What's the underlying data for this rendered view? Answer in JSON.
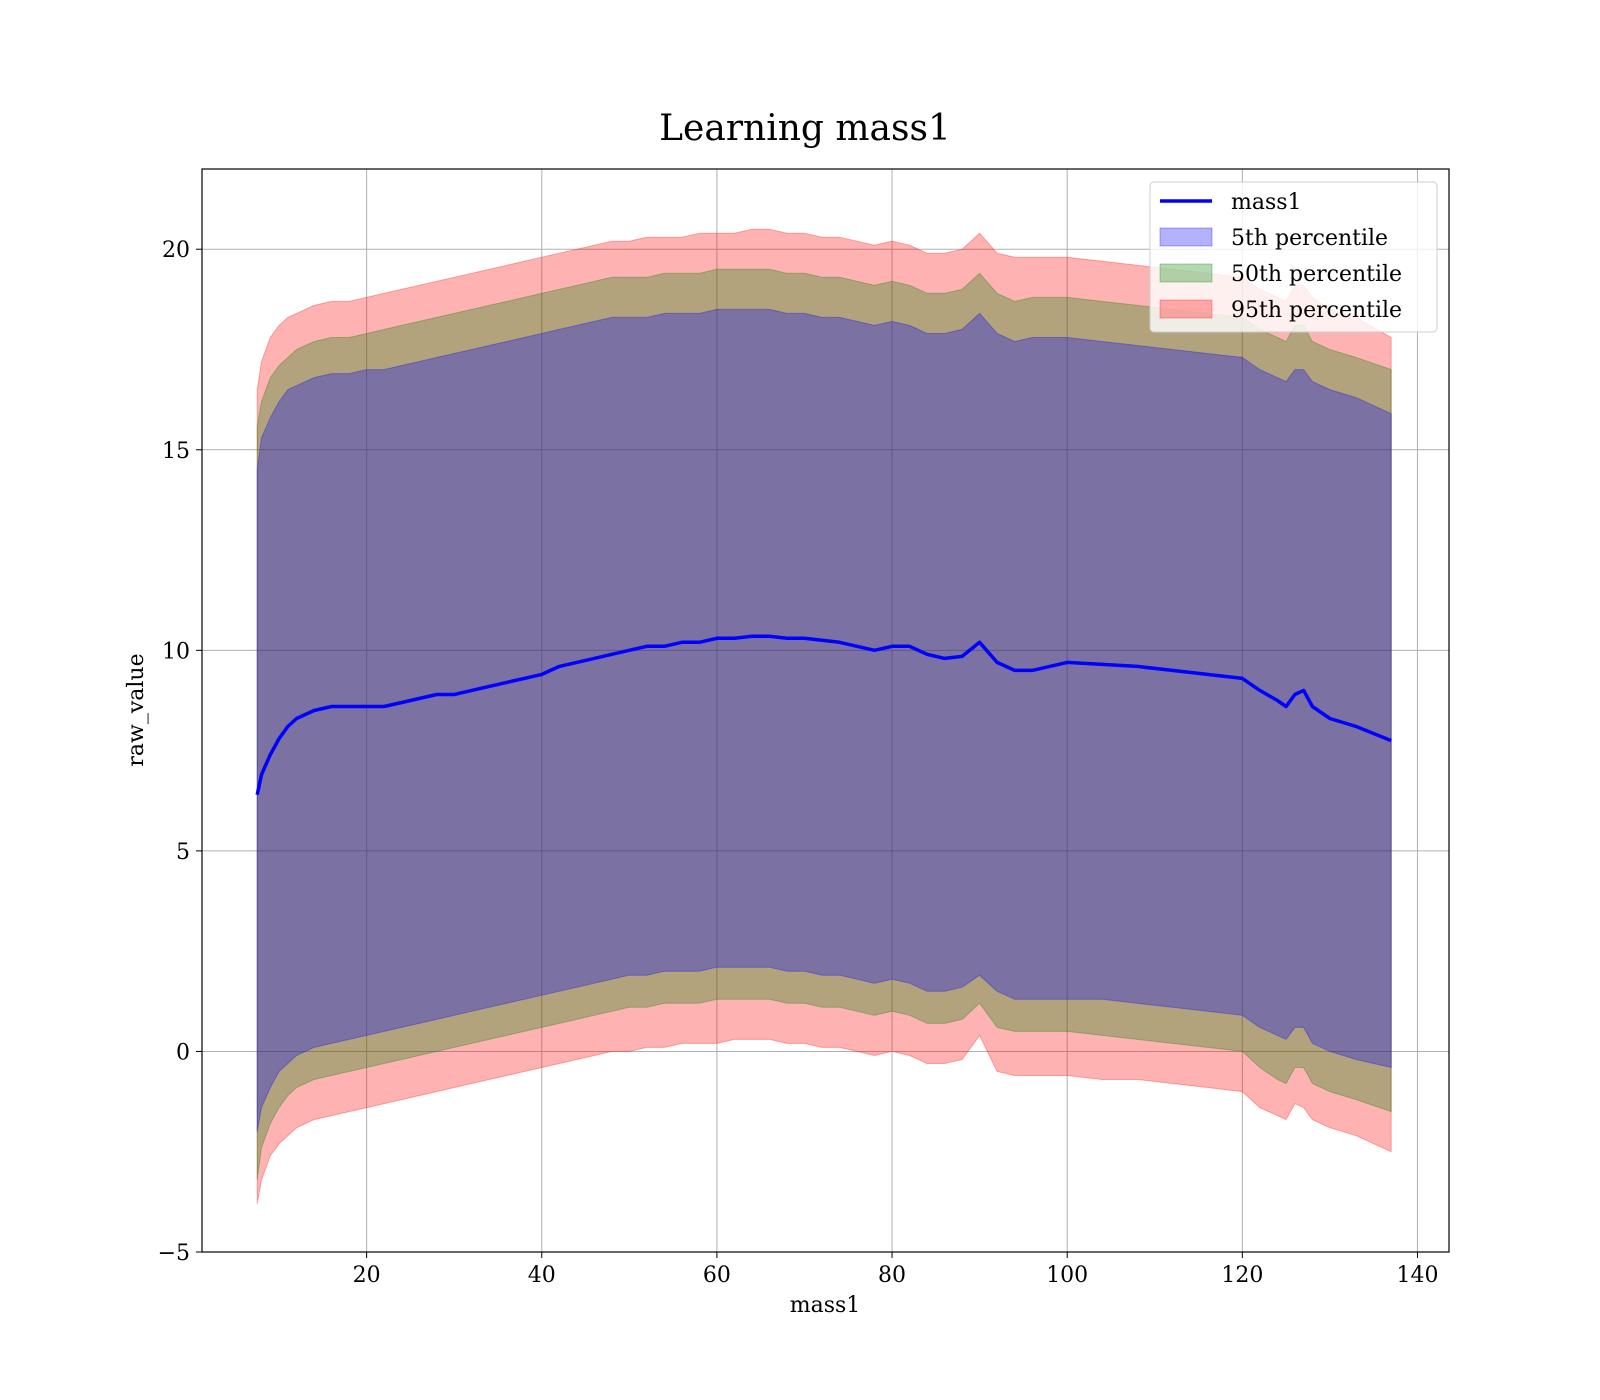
{
  "chart_data": {
    "type": "area",
    "title": "Learning mass1",
    "xlabel": "mass1",
    "ylabel": "raw_value",
    "xlim": [
      1.2,
      143.6
    ],
    "ylim": [
      -5,
      22
    ],
    "xticks": [
      20,
      40,
      60,
      80,
      100,
      120,
      140
    ],
    "yticks": [
      -5,
      0,
      5,
      10,
      15,
      20
    ],
    "ytick_labels": [
      "−5",
      "0",
      "5",
      "10",
      "15",
      "20"
    ],
    "grid": true,
    "legend_position": "top-right",
    "colors": {
      "line": "#0000ff",
      "band_5": "#0000ff",
      "band_50": "#008000",
      "band_95": "#ff0000"
    },
    "legend": [
      "mass1",
      "5th percentile",
      "50th percentile",
      "95th percentile"
    ],
    "x": [
      7.5,
      8,
      9,
      10,
      11,
      12,
      14,
      16,
      18,
      20,
      22,
      24,
      26,
      28,
      30,
      32,
      34,
      36,
      38,
      40,
      42,
      44,
      46,
      48,
      50,
      52,
      54,
      56,
      58,
      60,
      62,
      64,
      66,
      68,
      70,
      72,
      74,
      76,
      78,
      80,
      82,
      84,
      86,
      88,
      90,
      92,
      94,
      96,
      98,
      100,
      104,
      108,
      112,
      116,
      120,
      122,
      124,
      125,
      126,
      127,
      128,
      130,
      133,
      137
    ],
    "series": [
      {
        "name": "mass1",
        "values": [
          6.4,
          6.9,
          7.4,
          7.8,
          8.1,
          8.3,
          8.5,
          8.6,
          8.6,
          8.6,
          8.6,
          8.7,
          8.8,
          8.9,
          8.9,
          9.0,
          9.1,
          9.2,
          9.3,
          9.4,
          9.6,
          9.7,
          9.8,
          9.9,
          10.0,
          10.1,
          10.1,
          10.2,
          10.2,
          10.3,
          10.3,
          10.35,
          10.35,
          10.3,
          10.3,
          10.25,
          10.2,
          10.1,
          10.0,
          10.1,
          10.1,
          9.9,
          9.8,
          9.85,
          10.2,
          9.7,
          9.5,
          9.5,
          9.6,
          9.7,
          9.65,
          9.6,
          9.5,
          9.4,
          9.3,
          9.0,
          8.75,
          8.6,
          8.9,
          9.0,
          8.6,
          8.3,
          8.1,
          7.75
        ]
      },
      {
        "name": "5th percentile",
        "values": [
          [
            -2.0,
            14.5
          ],
          [
            -1.4,
            15.3
          ],
          [
            -0.9,
            15.8
          ],
          [
            -0.5,
            16.2
          ],
          [
            -0.3,
            16.5
          ],
          [
            -0.1,
            16.6
          ],
          [
            0.1,
            16.8
          ],
          [
            0.2,
            16.9
          ],
          [
            0.3,
            16.9
          ],
          [
            0.4,
            17.0
          ],
          [
            0.5,
            17.0
          ],
          [
            0.6,
            17.1
          ],
          [
            0.7,
            17.2
          ],
          [
            0.8,
            17.3
          ],
          [
            0.9,
            17.4
          ],
          [
            1.0,
            17.5
          ],
          [
            1.1,
            17.6
          ],
          [
            1.2,
            17.7
          ],
          [
            1.3,
            17.8
          ],
          [
            1.4,
            17.9
          ],
          [
            1.5,
            18.0
          ],
          [
            1.6,
            18.1
          ],
          [
            1.7,
            18.2
          ],
          [
            1.8,
            18.3
          ],
          [
            1.9,
            18.3
          ],
          [
            1.9,
            18.3
          ],
          [
            2.0,
            18.4
          ],
          [
            2.0,
            18.4
          ],
          [
            2.0,
            18.4
          ],
          [
            2.1,
            18.5
          ],
          [
            2.1,
            18.5
          ],
          [
            2.1,
            18.5
          ],
          [
            2.1,
            18.5
          ],
          [
            2.0,
            18.4
          ],
          [
            2.0,
            18.4
          ],
          [
            1.9,
            18.3
          ],
          [
            1.9,
            18.3
          ],
          [
            1.8,
            18.2
          ],
          [
            1.7,
            18.1
          ],
          [
            1.8,
            18.2
          ],
          [
            1.7,
            18.1
          ],
          [
            1.5,
            17.9
          ],
          [
            1.5,
            17.9
          ],
          [
            1.6,
            18.0
          ],
          [
            1.9,
            18.4
          ],
          [
            1.5,
            17.9
          ],
          [
            1.3,
            17.7
          ],
          [
            1.3,
            17.8
          ],
          [
            1.3,
            17.8
          ],
          [
            1.3,
            17.8
          ],
          [
            1.3,
            17.7
          ],
          [
            1.2,
            17.6
          ],
          [
            1.1,
            17.5
          ],
          [
            1.0,
            17.4
          ],
          [
            0.9,
            17.3
          ],
          [
            0.6,
            17.0
          ],
          [
            0.4,
            16.8
          ],
          [
            0.3,
            16.7
          ],
          [
            0.6,
            17.0
          ],
          [
            0.6,
            17.0
          ],
          [
            0.2,
            16.7
          ],
          [
            0.0,
            16.5
          ],
          [
            -0.2,
            16.3
          ],
          [
            -0.4,
            15.9
          ]
        ]
      },
      {
        "name": "50th percentile",
        "values": [
          [
            -3.2,
            15.6
          ],
          [
            -2.4,
            16.2
          ],
          [
            -1.8,
            16.8
          ],
          [
            -1.4,
            17.1
          ],
          [
            -1.1,
            17.3
          ],
          [
            -0.9,
            17.5
          ],
          [
            -0.7,
            17.7
          ],
          [
            -0.6,
            17.8
          ],
          [
            -0.5,
            17.8
          ],
          [
            -0.4,
            17.9
          ],
          [
            -0.3,
            18.0
          ],
          [
            -0.2,
            18.1
          ],
          [
            -0.1,
            18.2
          ],
          [
            0.0,
            18.3
          ],
          [
            0.1,
            18.4
          ],
          [
            0.2,
            18.5
          ],
          [
            0.3,
            18.6
          ],
          [
            0.4,
            18.7
          ],
          [
            0.5,
            18.8
          ],
          [
            0.6,
            18.9
          ],
          [
            0.7,
            19.0
          ],
          [
            0.8,
            19.1
          ],
          [
            0.9,
            19.2
          ],
          [
            1.0,
            19.3
          ],
          [
            1.1,
            19.3
          ],
          [
            1.1,
            19.3
          ],
          [
            1.2,
            19.4
          ],
          [
            1.2,
            19.4
          ],
          [
            1.2,
            19.4
          ],
          [
            1.3,
            19.5
          ],
          [
            1.3,
            19.5
          ],
          [
            1.3,
            19.5
          ],
          [
            1.3,
            19.5
          ],
          [
            1.2,
            19.4
          ],
          [
            1.2,
            19.4
          ],
          [
            1.1,
            19.3
          ],
          [
            1.1,
            19.3
          ],
          [
            1.0,
            19.2
          ],
          [
            0.9,
            19.1
          ],
          [
            1.0,
            19.2
          ],
          [
            0.9,
            19.1
          ],
          [
            0.7,
            18.9
          ],
          [
            0.7,
            18.9
          ],
          [
            0.8,
            19.0
          ],
          [
            1.2,
            19.4
          ],
          [
            0.6,
            18.9
          ],
          [
            0.5,
            18.7
          ],
          [
            0.5,
            18.8
          ],
          [
            0.5,
            18.8
          ],
          [
            0.5,
            18.8
          ],
          [
            0.4,
            18.7
          ],
          [
            0.3,
            18.6
          ],
          [
            0.2,
            18.5
          ],
          [
            0.1,
            18.4
          ],
          [
            0.0,
            18.3
          ],
          [
            -0.4,
            18.0
          ],
          [
            -0.7,
            17.8
          ],
          [
            -0.8,
            17.7
          ],
          [
            -0.4,
            18.1
          ],
          [
            -0.4,
            18.1
          ],
          [
            -0.8,
            17.7
          ],
          [
            -1.0,
            17.5
          ],
          [
            -1.2,
            17.3
          ],
          [
            -1.5,
            17.0
          ]
        ]
      },
      {
        "name": "95th percentile",
        "values": [
          [
            -3.8,
            16.5
          ],
          [
            -3.2,
            17.2
          ],
          [
            -2.6,
            17.8
          ],
          [
            -2.3,
            18.1
          ],
          [
            -2.1,
            18.3
          ],
          [
            -1.9,
            18.4
          ],
          [
            -1.7,
            18.6
          ],
          [
            -1.6,
            18.7
          ],
          [
            -1.5,
            18.7
          ],
          [
            -1.4,
            18.8
          ],
          [
            -1.3,
            18.9
          ],
          [
            -1.2,
            19.0
          ],
          [
            -1.1,
            19.1
          ],
          [
            -1.0,
            19.2
          ],
          [
            -0.9,
            19.3
          ],
          [
            -0.8,
            19.4
          ],
          [
            -0.7,
            19.5
          ],
          [
            -0.6,
            19.6
          ],
          [
            -0.5,
            19.7
          ],
          [
            -0.4,
            19.8
          ],
          [
            -0.3,
            19.9
          ],
          [
            -0.2,
            20.0
          ],
          [
            -0.1,
            20.1
          ],
          [
            0.0,
            20.2
          ],
          [
            0.0,
            20.2
          ],
          [
            0.1,
            20.3
          ],
          [
            0.1,
            20.3
          ],
          [
            0.2,
            20.3
          ],
          [
            0.2,
            20.4
          ],
          [
            0.2,
            20.4
          ],
          [
            0.3,
            20.4
          ],
          [
            0.3,
            20.5
          ],
          [
            0.3,
            20.5
          ],
          [
            0.2,
            20.4
          ],
          [
            0.2,
            20.4
          ],
          [
            0.1,
            20.3
          ],
          [
            0.1,
            20.3
          ],
          [
            0.0,
            20.2
          ],
          [
            -0.1,
            20.1
          ],
          [
            0.0,
            20.2
          ],
          [
            -0.1,
            20.1
          ],
          [
            -0.3,
            19.9
          ],
          [
            -0.3,
            19.9
          ],
          [
            -0.2,
            20.0
          ],
          [
            0.4,
            20.4
          ],
          [
            -0.5,
            19.9
          ],
          [
            -0.6,
            19.8
          ],
          [
            -0.6,
            19.8
          ],
          [
            -0.6,
            19.8
          ],
          [
            -0.6,
            19.8
          ],
          [
            -0.7,
            19.7
          ],
          [
            -0.7,
            19.6
          ],
          [
            -0.8,
            19.5
          ],
          [
            -0.9,
            19.4
          ],
          [
            -1.0,
            19.3
          ],
          [
            -1.4,
            19.0
          ],
          [
            -1.6,
            18.8
          ],
          [
            -1.7,
            18.7
          ],
          [
            -1.3,
            19.1
          ],
          [
            -1.4,
            19.1
          ],
          [
            -1.7,
            18.8
          ],
          [
            -1.9,
            18.5
          ],
          [
            -2.1,
            18.3
          ],
          [
            -2.5,
            17.8
          ]
        ]
      }
    ]
  }
}
